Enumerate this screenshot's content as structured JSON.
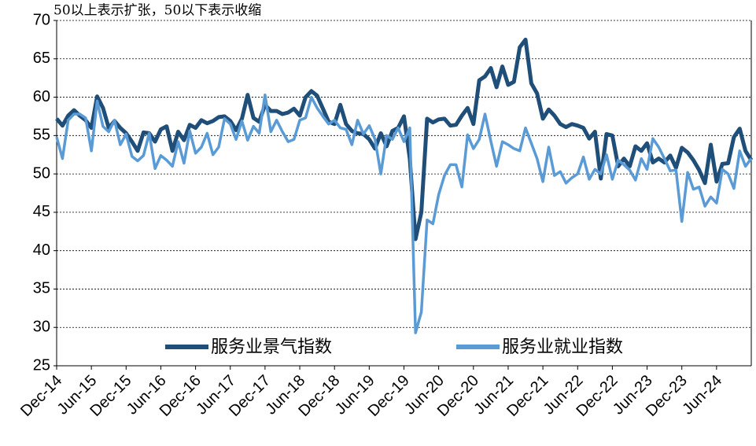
{
  "chart_data": {
    "type": "line",
    "subtitle": "50以上表示扩张，50以下表示收缩",
    "categories": [
      "Dec-14",
      null,
      null,
      null,
      null,
      null,
      "Jun-15",
      null,
      null,
      null,
      null,
      null,
      "Dec-15",
      null,
      null,
      null,
      null,
      null,
      "Jun-16",
      null,
      null,
      null,
      null,
      null,
      "Dec-16",
      null,
      null,
      null,
      null,
      null,
      "Jun-17",
      null,
      null,
      null,
      null,
      null,
      "Dec-17",
      null,
      null,
      null,
      null,
      null,
      "Jun-18",
      null,
      null,
      null,
      null,
      null,
      "Dec-18",
      null,
      null,
      null,
      null,
      null,
      "Jun-19",
      null,
      null,
      null,
      null,
      null,
      "Dec-19",
      null,
      null,
      null,
      null,
      null,
      "Jun-20",
      null,
      null,
      null,
      null,
      null,
      "Dec-20",
      null,
      null,
      null,
      null,
      null,
      "Jun-21",
      null,
      null,
      null,
      null,
      null,
      "Dec-21",
      null,
      null,
      null,
      null,
      null,
      "Jun-22",
      null,
      null,
      null,
      null,
      null,
      "Dec-22",
      null,
      null,
      null,
      null,
      null,
      "Jun-23",
      null,
      null,
      null,
      null,
      null,
      "Dec-23",
      null,
      null,
      null,
      null,
      null,
      "Jun-24",
      null,
      null,
      null,
      null,
      null,
      null
    ],
    "series": [
      {
        "name": "服务业景气指数",
        "color": "#1f4e79",
        "values": [
          57.2,
          56.3,
          57.6,
          58.3,
          57.6,
          57.0,
          56.0,
          60.1,
          58.6,
          56.0,
          56.9,
          56.0,
          55.3,
          54.2,
          53.0,
          55.4,
          55.3,
          54.2,
          55.8,
          56.2,
          53.0,
          55.5,
          54.4,
          56.4,
          56.0,
          57.0,
          56.6,
          56.9,
          57.4,
          57.5,
          56.9,
          55.7,
          57.2,
          60.3,
          57.3,
          56.8,
          59.0,
          58.2,
          58.2,
          57.8,
          58.0,
          58.5,
          57.6,
          60.0,
          60.8,
          60.2,
          58.5,
          56.8,
          56.5,
          59.0,
          56.5,
          55.6,
          55.3,
          55.2,
          54.5,
          53.3,
          55.3,
          53.6,
          55.6,
          56.0,
          57.5,
          52.0,
          41.5,
          45.0,
          57.2,
          56.7,
          57.1,
          57.2,
          56.3,
          56.4,
          57.6,
          58.6,
          56.5,
          62.2,
          62.7,
          63.8,
          61.3,
          64.0,
          61.6,
          62.0,
          66.5,
          67.5,
          61.8,
          60.5,
          57.2,
          58.4,
          57.6,
          56.5,
          56.1,
          56.5,
          56.3,
          56.0,
          54.6,
          55.5,
          49.4,
          55.2,
          55.0,
          51.0,
          52.0,
          51.0,
          53.6,
          53.0,
          54.0,
          51.5,
          52.0,
          51.5,
          52.4,
          50.8,
          53.4,
          52.8,
          51.8,
          50.5,
          48.8,
          53.8,
          49.0,
          51.3,
          51.4,
          54.8,
          55.9,
          53.0,
          51.8
        ]
      },
      {
        "name": "服务业就业指数",
        "color": "#5b9bd5",
        "values": [
          54.8,
          52.0,
          57.0,
          57.8,
          57.8,
          57.3,
          53.0,
          59.5,
          56.2,
          55.5,
          57.0,
          53.8,
          55.2,
          52.3,
          51.7,
          52.4,
          55.3,
          50.7,
          52.4,
          51.8,
          51.0,
          54.2,
          51.4,
          55.6,
          52.7,
          53.5,
          55.3,
          52.5,
          53.5,
          57.2,
          56.5,
          54.5,
          56.9,
          54.4,
          56.2,
          55.3,
          60.3,
          55.5,
          57.0,
          55.5,
          54.2,
          54.5,
          57.0,
          57.3,
          60.0,
          58.6,
          57.5,
          56.5,
          57.0,
          56.0,
          55.8,
          53.8,
          57.0,
          55.2,
          56.3,
          54.5,
          50.0,
          55.0,
          54.5,
          56.0,
          54.2,
          56.0,
          29.3,
          32.0,
          44.0,
          43.5,
          47.3,
          49.8,
          51.2,
          51.2,
          48.3,
          55.1,
          53.3,
          54.5,
          57.8,
          54.3,
          51.0,
          54.2,
          53.8,
          53.3,
          53.0,
          56.0,
          54.0,
          52.0,
          49.0,
          53.5,
          49.8,
          50.3,
          48.8,
          49.5,
          50.0,
          52.2,
          49.3,
          50.6,
          50.0,
          52.5,
          49.3,
          51.8,
          51.2,
          50.5,
          49.2,
          52.0,
          50.6,
          54.6,
          53.5,
          52.0,
          50.4,
          50.5,
          43.8,
          50.2,
          48.0,
          48.3,
          45.8,
          47.0,
          46.2,
          50.6,
          50.0,
          48.1,
          53.0,
          51.0,
          52.0
        ]
      }
    ],
    "ylim": [
      25,
      70
    ],
    "yticks": [
      25,
      30,
      35,
      40,
      45,
      50,
      55,
      60,
      65,
      70
    ],
    "grid": true
  }
}
